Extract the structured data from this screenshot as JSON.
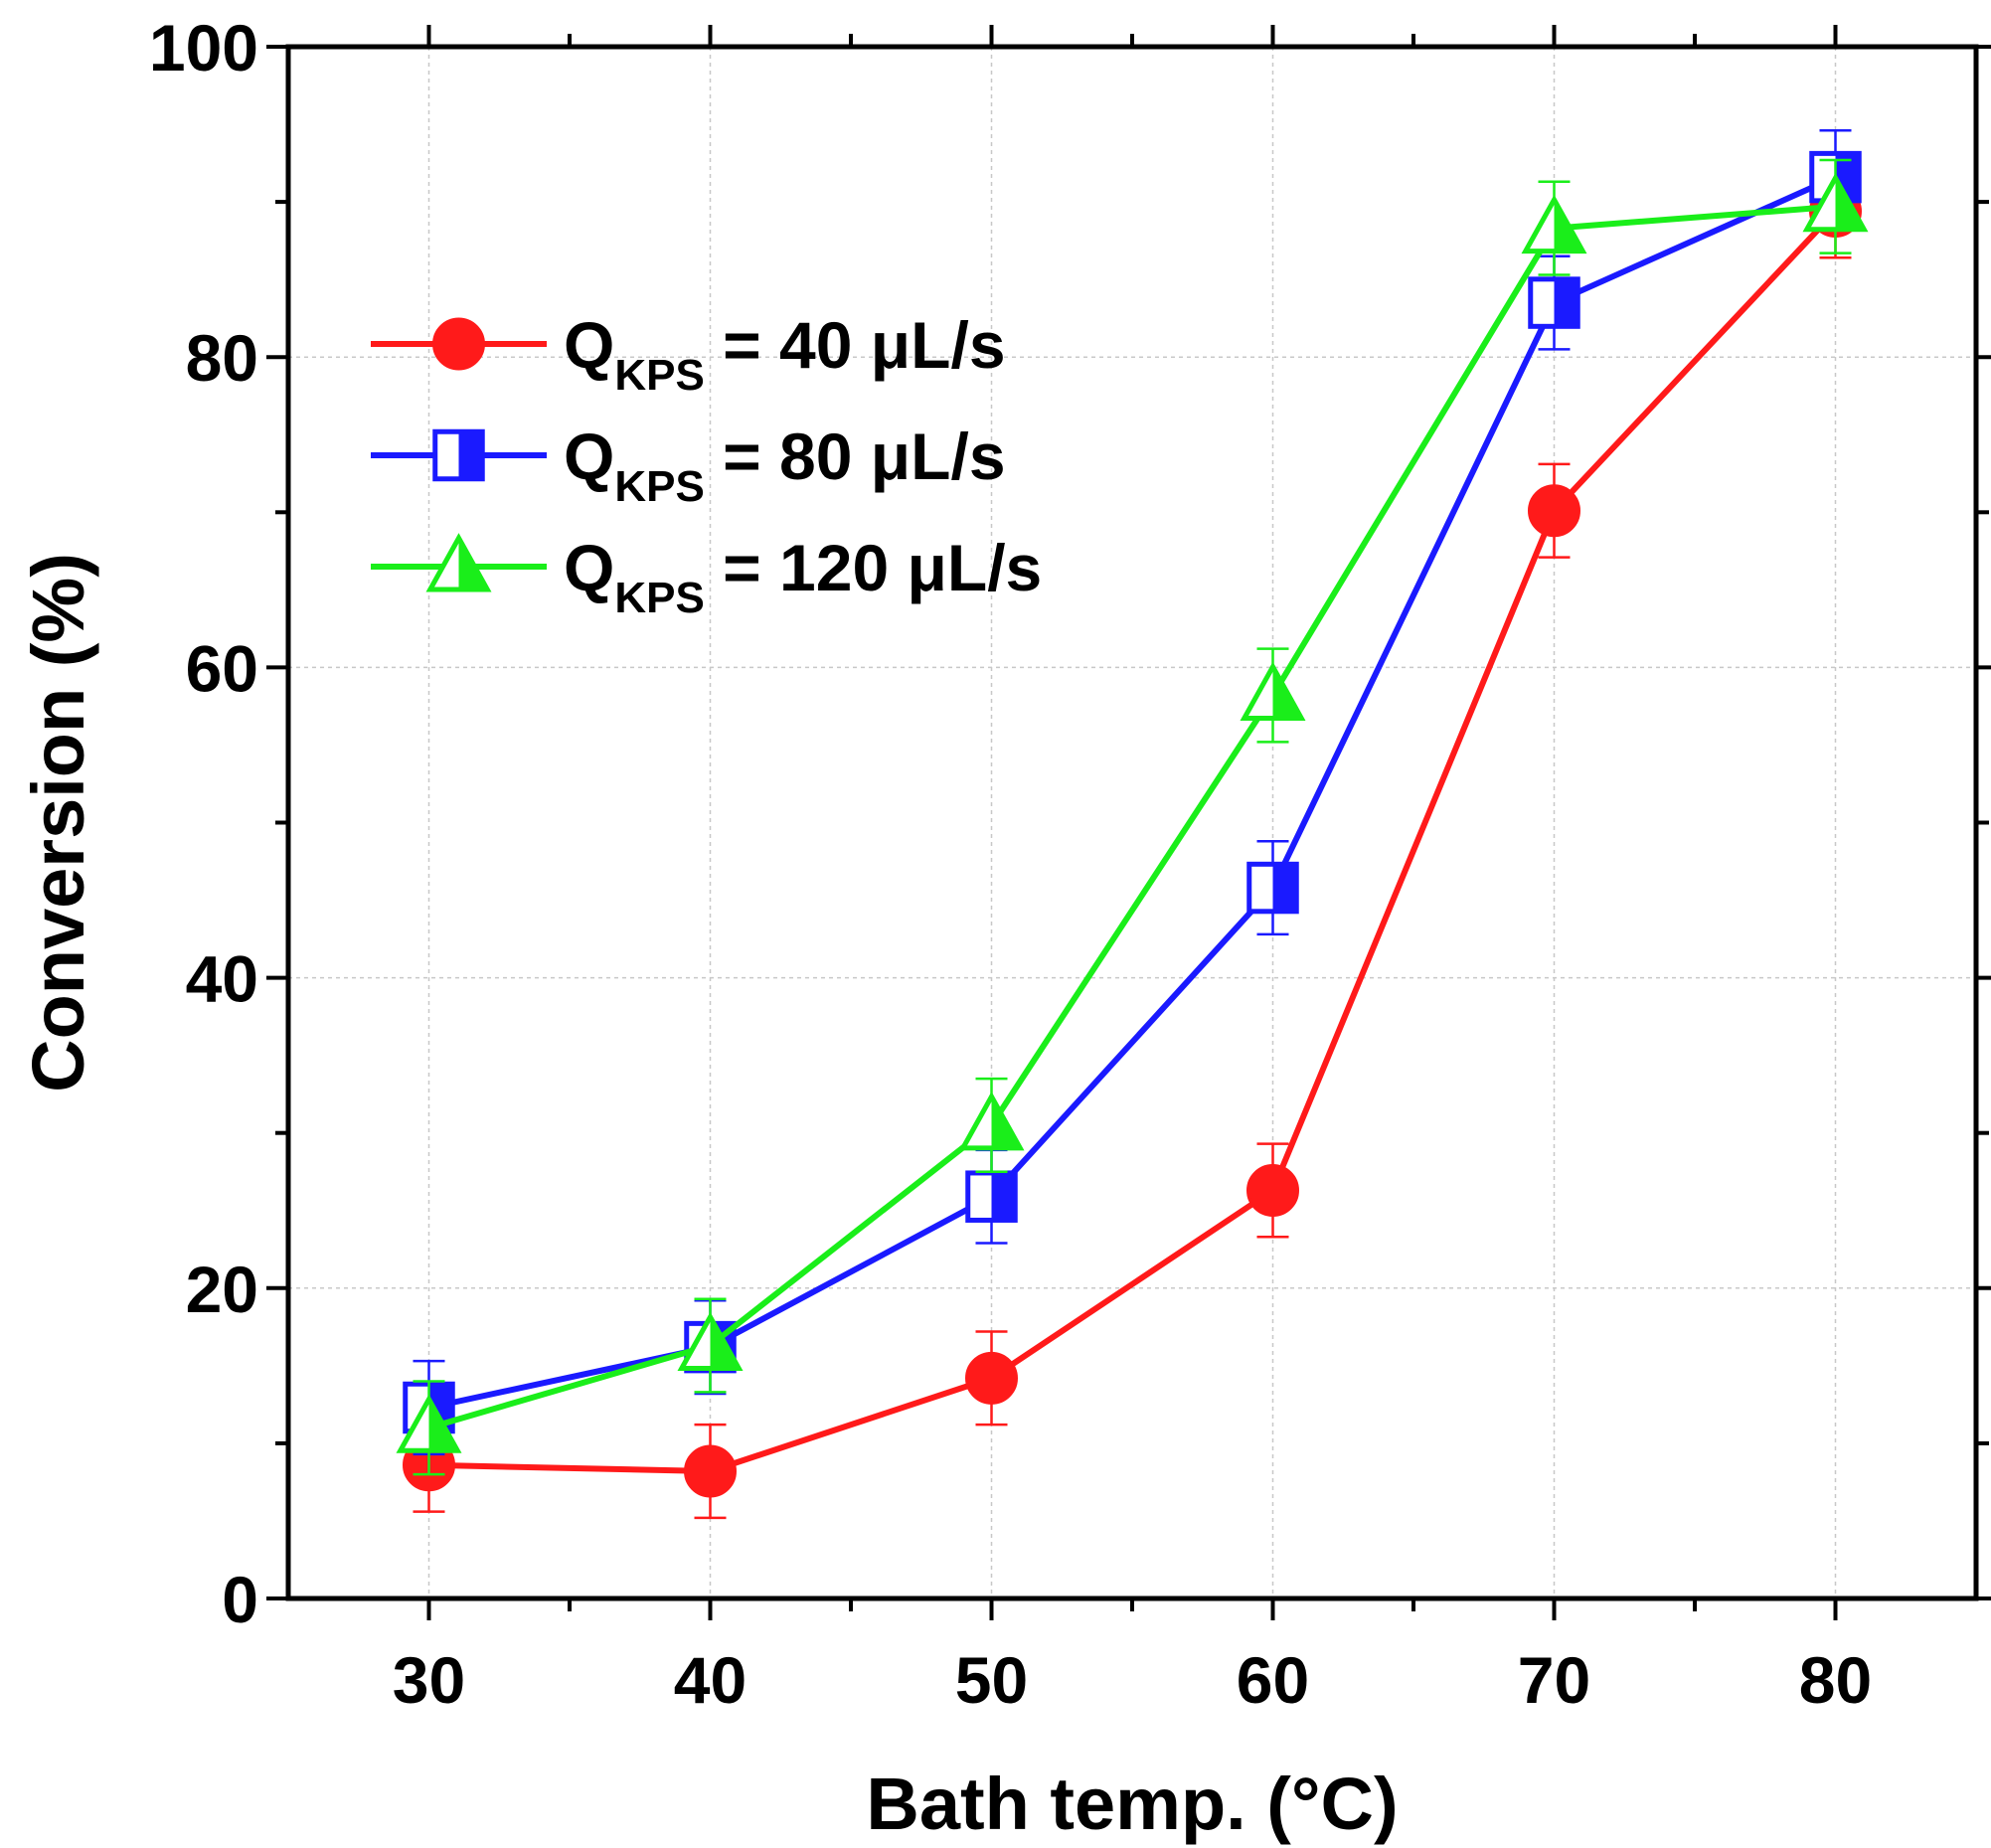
{
  "chart_data": {
    "type": "line",
    "title": "",
    "xlabel": "Bath temp. (°C)",
    "ylabel": "Conversion (%)",
    "x": [
      30,
      40,
      50,
      60,
      70,
      80
    ],
    "xlim": [
      25,
      85
    ],
    "ylim": [
      0,
      100
    ],
    "xticks": [
      "30",
      "40",
      "50",
      "60",
      "70",
      "80"
    ],
    "yticks": [
      "0",
      "20",
      "40",
      "60",
      "80",
      "100"
    ],
    "grid": true,
    "legend_position": "top-left",
    "series": [
      {
        "name": "Q_KPS = 40 μL/s",
        "legend_main": "Q",
        "legend_sub": "KPS",
        "legend_rest": " = 40 μL/s",
        "color": "#ff1a1a",
        "marker": "circle-filled",
        "values": [
          8.6,
          8.2,
          14.2,
          26.3,
          70.1,
          89.4
        ],
        "errors": [
          3.0,
          3.0,
          3.0,
          3.0,
          3.0,
          3.0
        ]
      },
      {
        "name": "Q_KPS = 80 μL/s",
        "legend_main": "Q",
        "legend_sub": "KPS",
        "legend_rest": " = 80 μL/s",
        "color": "#1a1aff",
        "marker": "square-half",
        "values": [
          12.3,
          16.2,
          25.9,
          45.8,
          83.5,
          91.6
        ],
        "errors": [
          3.0,
          3.0,
          3.0,
          3.0,
          3.0,
          3.0
        ]
      },
      {
        "name": "Q_KPS = 120 μL/s",
        "legend_main": "Q",
        "legend_sub": "KPS",
        "legend_rest": " = 120 μL/s",
        "color": "#1aee1a",
        "marker": "triangle-half",
        "values": [
          11.0,
          16.3,
          30.5,
          58.2,
          88.3,
          89.7
        ],
        "errors": [
          3.0,
          3.0,
          3.0,
          3.0,
          3.0,
          3.0
        ]
      }
    ]
  }
}
